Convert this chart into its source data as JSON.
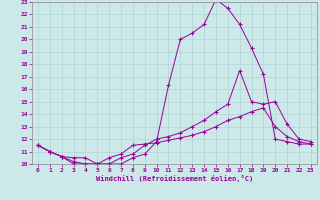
{
  "xlabel": "Windchill (Refroidissement éolien,°C)",
  "bg_color": "#cce8e8",
  "line_color": "#990099",
  "xlim": [
    -0.5,
    23.5
  ],
  "ylim": [
    10,
    23
  ],
  "xticks": [
    0,
    1,
    2,
    3,
    4,
    5,
    6,
    7,
    8,
    9,
    10,
    11,
    12,
    13,
    14,
    15,
    16,
    17,
    18,
    19,
    20,
    21,
    22,
    23
  ],
  "yticks": [
    10,
    11,
    12,
    13,
    14,
    15,
    16,
    17,
    18,
    19,
    20,
    21,
    22,
    23
  ],
  "series1_x": [
    0,
    1,
    2,
    3,
    4,
    5,
    6,
    7,
    8,
    9,
    10,
    11,
    12,
    13,
    14,
    15,
    16,
    17,
    18,
    19,
    20,
    21,
    22,
    23
  ],
  "series1_y": [
    11.5,
    11.0,
    10.6,
    10.0,
    10.0,
    10.0,
    10.5,
    10.8,
    11.5,
    11.6,
    11.7,
    11.9,
    12.1,
    12.3,
    12.6,
    13.0,
    13.5,
    13.8,
    14.2,
    14.5,
    13.0,
    12.2,
    11.8,
    11.6
  ],
  "series2_x": [
    0,
    1,
    2,
    3,
    4,
    5,
    6,
    7,
    8,
    9,
    10,
    11,
    12,
    13,
    14,
    15,
    16,
    17,
    18,
    19,
    20,
    21,
    22,
    23
  ],
  "series2_y": [
    11.5,
    11.0,
    10.6,
    10.5,
    10.5,
    10.0,
    10.0,
    10.0,
    10.5,
    10.8,
    11.8,
    16.3,
    20.0,
    20.5,
    21.2,
    23.2,
    22.5,
    21.2,
    19.3,
    17.2,
    12.0,
    11.8,
    11.6,
    11.6
  ],
  "series3_x": [
    0,
    1,
    2,
    3,
    4,
    5,
    6,
    7,
    8,
    9,
    10,
    11,
    12,
    13,
    14,
    15,
    16,
    17,
    18,
    19,
    20,
    21,
    22,
    23
  ],
  "series3_y": [
    11.5,
    11.0,
    10.6,
    10.2,
    10.0,
    10.0,
    10.0,
    10.5,
    10.8,
    11.5,
    12.0,
    12.2,
    12.5,
    13.0,
    13.5,
    14.2,
    14.8,
    17.5,
    15.0,
    14.8,
    15.0,
    13.2,
    12.0,
    11.8
  ]
}
